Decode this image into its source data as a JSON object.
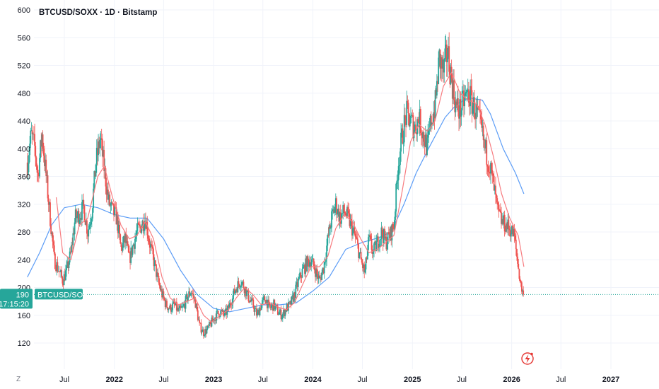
{
  "header": {
    "title": "BTCUSD/SOXX · 1D · Bitstamp"
  },
  "price_tag": {
    "value": "190",
    "countdown": "17:15:20",
    "symbol": "BTCUSD/SOXX",
    "color": "#26a69a"
  },
  "axis_corner_label": "Z",
  "colors": {
    "up": "#26a69a",
    "down": "#ef5350",
    "ma_fast": "#f77c80",
    "ma_slow": "#5b9cf6",
    "grid": "#f0f3fa",
    "last_line": "#26a69a",
    "flash_icon": "#e53935"
  },
  "icons": {
    "flash": "lightning-icon"
  },
  "chart_data": {
    "type": "candlestick",
    "title": "BTCUSD/SOXX · 1D · Bitstamp",
    "ylim": [
      100,
      600
    ],
    "xlim": [
      "2021-02-15",
      "2027-11-01"
    ],
    "y_ticks": [
      120,
      160,
      200,
      240,
      280,
      320,
      360,
      400,
      440,
      480,
      520,
      560,
      600
    ],
    "x_ticks": [
      {
        "label": "Jul",
        "date": "2021-07-01",
        "year": false
      },
      {
        "label": "2022",
        "date": "2022-01-01",
        "year": true
      },
      {
        "label": "Jul",
        "date": "2022-07-01",
        "year": false
      },
      {
        "label": "2023",
        "date": "2023-01-01",
        "year": true
      },
      {
        "label": "Jul",
        "date": "2023-07-01",
        "year": false
      },
      {
        "label": "2024",
        "date": "2024-01-01",
        "year": true
      },
      {
        "label": "Jul",
        "date": "2024-07-01",
        "year": false
      },
      {
        "label": "2025",
        "date": "2025-01-01",
        "year": true
      },
      {
        "label": "Jul",
        "date": "2025-07-01",
        "year": false
      },
      {
        "label": "2026",
        "date": "2026-01-01",
        "year": true
      },
      {
        "label": "Jul",
        "date": "2026-07-01",
        "year": false
      },
      {
        "label": "2027",
        "date": "2027-01-01",
        "year": true
      }
    ],
    "last_value": 190,
    "price_path": [
      [
        "2021-02-15",
        380
      ],
      [
        "2021-03-01",
        420
      ],
      [
        "2021-03-15",
        400
      ],
      [
        "2021-03-25",
        360
      ],
      [
        "2021-04-10",
        420
      ],
      [
        "2021-04-25",
        360
      ],
      [
        "2021-05-10",
        300
      ],
      [
        "2021-05-25",
        240
      ],
      [
        "2021-06-10",
        225
      ],
      [
        "2021-06-25",
        210
      ],
      [
        "2021-07-10",
        225
      ],
      [
        "2021-07-25",
        250
      ],
      [
        "2021-08-10",
        300
      ],
      [
        "2021-08-25",
        305
      ],
      [
        "2021-09-10",
        315
      ],
      [
        "2021-09-25",
        280
      ],
      [
        "2021-10-10",
        310
      ],
      [
        "2021-10-25",
        380
      ],
      [
        "2021-11-10",
        415
      ],
      [
        "2021-11-25",
        370
      ],
      [
        "2021-12-10",
        325
      ],
      [
        "2021-12-25",
        310
      ],
      [
        "2022-01-10",
        300
      ],
      [
        "2022-01-25",
        255
      ],
      [
        "2022-02-10",
        270
      ],
      [
        "2022-02-25",
        240
      ],
      [
        "2022-03-10",
        260
      ],
      [
        "2022-03-25",
        280
      ],
      [
        "2022-04-10",
        290
      ],
      [
        "2022-04-25",
        300
      ],
      [
        "2022-05-10",
        265
      ],
      [
        "2022-05-25",
        240
      ],
      [
        "2022-06-10",
        210
      ],
      [
        "2022-06-25",
        190
      ],
      [
        "2022-07-10",
        175
      ],
      [
        "2022-07-25",
        170
      ],
      [
        "2022-08-10",
        175
      ],
      [
        "2022-08-25",
        165
      ],
      [
        "2022-09-10",
        170
      ],
      [
        "2022-09-25",
        185
      ],
      [
        "2022-10-10",
        195
      ],
      [
        "2022-10-25",
        180
      ],
      [
        "2022-11-10",
        145
      ],
      [
        "2022-11-25",
        135
      ],
      [
        "2022-12-10",
        140
      ],
      [
        "2022-12-25",
        150
      ],
      [
        "2023-01-10",
        160
      ],
      [
        "2023-01-25",
        165
      ],
      [
        "2023-02-10",
        160
      ],
      [
        "2023-02-25",
        170
      ],
      [
        "2023-03-10",
        185
      ],
      [
        "2023-03-25",
        200
      ],
      [
        "2023-04-10",
        210
      ],
      [
        "2023-04-25",
        200
      ],
      [
        "2023-05-10",
        185
      ],
      [
        "2023-05-25",
        175
      ],
      [
        "2023-06-10",
        160
      ],
      [
        "2023-06-25",
        175
      ],
      [
        "2023-07-10",
        185
      ],
      [
        "2023-07-25",
        170
      ],
      [
        "2023-08-10",
        175
      ],
      [
        "2023-08-25",
        165
      ],
      [
        "2023-09-10",
        160
      ],
      [
        "2023-09-25",
        170
      ],
      [
        "2023-10-10",
        175
      ],
      [
        "2023-10-25",
        190
      ],
      [
        "2023-11-10",
        210
      ],
      [
        "2023-11-25",
        225
      ],
      [
        "2023-12-10",
        235
      ],
      [
        "2023-12-25",
        240
      ],
      [
        "2024-01-10",
        225
      ],
      [
        "2024-01-25",
        210
      ],
      [
        "2024-02-10",
        230
      ],
      [
        "2024-02-25",
        270
      ],
      [
        "2024-03-10",
        300
      ],
      [
        "2024-03-25",
        320
      ],
      [
        "2024-04-10",
        300
      ],
      [
        "2024-04-25",
        310
      ],
      [
        "2024-05-10",
        300
      ],
      [
        "2024-05-25",
        285
      ],
      [
        "2024-06-10",
        265
      ],
      [
        "2024-06-25",
        240
      ],
      [
        "2024-07-10",
        220
      ],
      [
        "2024-07-25",
        270
      ],
      [
        "2024-08-10",
        250
      ],
      [
        "2024-08-25",
        265
      ],
      [
        "2024-09-10",
        280
      ],
      [
        "2024-09-25",
        265
      ],
      [
        "2024-10-10",
        275
      ],
      [
        "2024-10-25",
        290
      ],
      [
        "2024-11-10",
        380
      ],
      [
        "2024-11-25",
        420
      ],
      [
        "2024-12-10",
        450
      ],
      [
        "2024-12-25",
        440
      ],
      [
        "2025-01-10",
        430
      ],
      [
        "2025-01-25",
        445
      ],
      [
        "2025-02-10",
        420
      ],
      [
        "2025-02-25",
        400
      ],
      [
        "2025-03-10",
        440
      ],
      [
        "2025-03-25",
        460
      ],
      [
        "2025-04-10",
        530
      ],
      [
        "2025-04-25",
        510
      ],
      [
        "2025-05-10",
        540
      ],
      [
        "2025-05-25",
        500
      ],
      [
        "2025-06-10",
        460
      ],
      [
        "2025-06-25",
        455
      ],
      [
        "2025-07-10",
        470
      ],
      [
        "2025-07-25",
        480
      ],
      [
        "2025-08-10",
        465
      ],
      [
        "2025-08-25",
        450
      ],
      [
        "2025-09-10",
        430
      ],
      [
        "2025-09-25",
        400
      ],
      [
        "2025-10-10",
        380
      ],
      [
        "2025-10-25",
        350
      ],
      [
        "2025-11-10",
        310
      ],
      [
        "2025-11-25",
        295
      ],
      [
        "2025-12-10",
        290
      ],
      [
        "2025-12-25",
        285
      ],
      [
        "2026-01-10",
        275
      ],
      [
        "2026-01-25",
        230
      ],
      [
        "2026-02-05",
        200
      ],
      [
        "2026-02-15",
        190
      ]
    ],
    "fast_ma_path": [
      [
        "2021-06-01",
        330
      ],
      [
        "2021-06-25",
        250
      ],
      [
        "2021-07-25",
        240
      ],
      [
        "2021-08-25",
        290
      ],
      [
        "2021-09-25",
        300
      ],
      [
        "2021-11-01",
        360
      ],
      [
        "2021-11-25",
        375
      ],
      [
        "2021-12-25",
        330
      ],
      [
        "2022-01-25",
        290
      ],
      [
        "2022-02-25",
        270
      ],
      [
        "2022-03-25",
        275
      ],
      [
        "2022-04-25",
        295
      ],
      [
        "2022-05-25",
        270
      ],
      [
        "2022-06-25",
        215
      ],
      [
        "2022-07-25",
        185
      ],
      [
        "2022-08-25",
        175
      ],
      [
        "2022-09-25",
        180
      ],
      [
        "2022-10-25",
        185
      ],
      [
        "2022-11-25",
        160
      ],
      [
        "2022-12-25",
        150
      ],
      [
        "2023-01-25",
        160
      ],
      [
        "2023-02-25",
        168
      ],
      [
        "2023-03-25",
        185
      ],
      [
        "2023-04-25",
        200
      ],
      [
        "2023-05-25",
        190
      ],
      [
        "2023-06-25",
        175
      ],
      [
        "2023-07-25",
        178
      ],
      [
        "2023-08-25",
        172
      ],
      [
        "2023-09-25",
        168
      ],
      [
        "2023-10-25",
        178
      ],
      [
        "2023-11-25",
        205
      ],
      [
        "2023-12-25",
        230
      ],
      [
        "2024-01-25",
        230
      ],
      [
        "2024-02-25",
        245
      ],
      [
        "2024-03-25",
        285
      ],
      [
        "2024-04-25",
        305
      ],
      [
        "2024-05-25",
        295
      ],
      [
        "2024-06-25",
        270
      ],
      [
        "2024-07-25",
        250
      ],
      [
        "2024-08-25",
        255
      ],
      [
        "2024-09-25",
        265
      ],
      [
        "2024-10-25",
        275
      ],
      [
        "2024-11-25",
        340
      ],
      [
        "2024-12-25",
        410
      ],
      [
        "2025-01-25",
        435
      ],
      [
        "2025-02-25",
        425
      ],
      [
        "2025-03-25",
        440
      ],
      [
        "2025-04-25",
        490
      ],
      [
        "2025-05-25",
        510
      ],
      [
        "2025-06-25",
        480
      ],
      [
        "2025-07-25",
        470
      ],
      [
        "2025-08-25",
        465
      ],
      [
        "2025-09-25",
        435
      ],
      [
        "2025-10-25",
        390
      ],
      [
        "2025-11-25",
        335
      ],
      [
        "2025-12-25",
        300
      ],
      [
        "2026-01-25",
        275
      ],
      [
        "2026-02-15",
        230
      ]
    ],
    "slow_ma_path": [
      [
        "2021-02-15",
        215
      ],
      [
        "2021-04-01",
        250
      ],
      [
        "2021-05-15",
        290
      ],
      [
        "2021-07-01",
        315
      ],
      [
        "2021-09-01",
        320
      ],
      [
        "2021-11-01",
        315
      ],
      [
        "2022-01-01",
        305
      ],
      [
        "2022-03-01",
        300
      ],
      [
        "2022-05-01",
        300
      ],
      [
        "2022-07-01",
        270
      ],
      [
        "2022-09-01",
        225
      ],
      [
        "2022-11-01",
        190
      ],
      [
        "2023-01-01",
        170
      ],
      [
        "2023-03-01",
        165
      ],
      [
        "2023-05-01",
        170
      ],
      [
        "2023-07-01",
        175
      ],
      [
        "2023-09-01",
        175
      ],
      [
        "2023-11-01",
        178
      ],
      [
        "2024-01-01",
        195
      ],
      [
        "2024-03-01",
        215
      ],
      [
        "2024-05-01",
        255
      ],
      [
        "2024-07-01",
        265
      ],
      [
        "2024-09-01",
        272
      ],
      [
        "2024-10-15",
        280
      ],
      [
        "2024-12-01",
        320
      ],
      [
        "2025-01-15",
        365
      ],
      [
        "2025-03-01",
        400
      ],
      [
        "2025-05-01",
        445
      ],
      [
        "2025-06-15",
        465
      ],
      [
        "2025-08-01",
        473
      ],
      [
        "2025-09-15",
        470
      ],
      [
        "2025-10-15",
        450
      ],
      [
        "2025-12-01",
        400
      ],
      [
        "2026-01-15",
        365
      ],
      [
        "2026-02-15",
        335
      ]
    ]
  }
}
